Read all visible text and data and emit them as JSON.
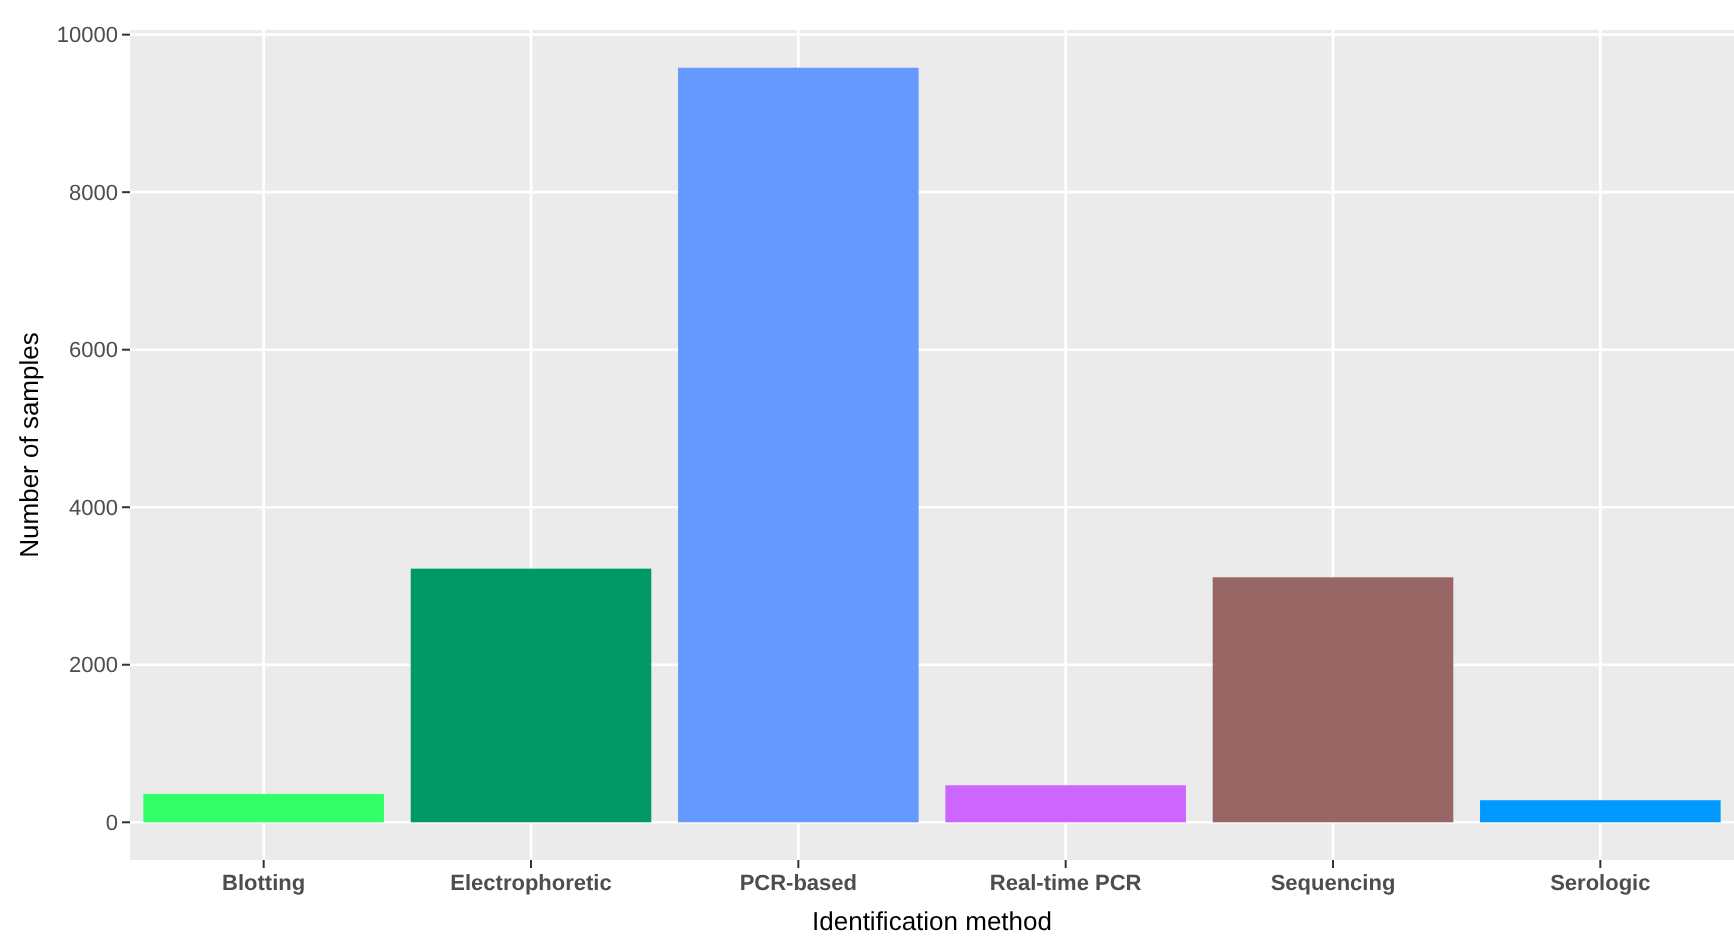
{
  "chart_data": {
    "type": "bar",
    "xlabel": "Identification method",
    "ylabel": "Number of samples",
    "categories": [
      "Blotting",
      "Electrophoretic",
      "PCR-based",
      "Real-time PCR",
      "Sequencing",
      "Serologic"
    ],
    "values": [
      360,
      3220,
      9580,
      470,
      3110,
      280
    ],
    "colors": [
      "#33ff66",
      "#009966",
      "#6699ff",
      "#cc66ff",
      "#996666",
      "#0099ff"
    ],
    "ylim": [
      -479,
      10059
    ],
    "yticks": [
      0,
      2000,
      4000,
      6000,
      8000,
      10000
    ],
    "grid": true
  }
}
